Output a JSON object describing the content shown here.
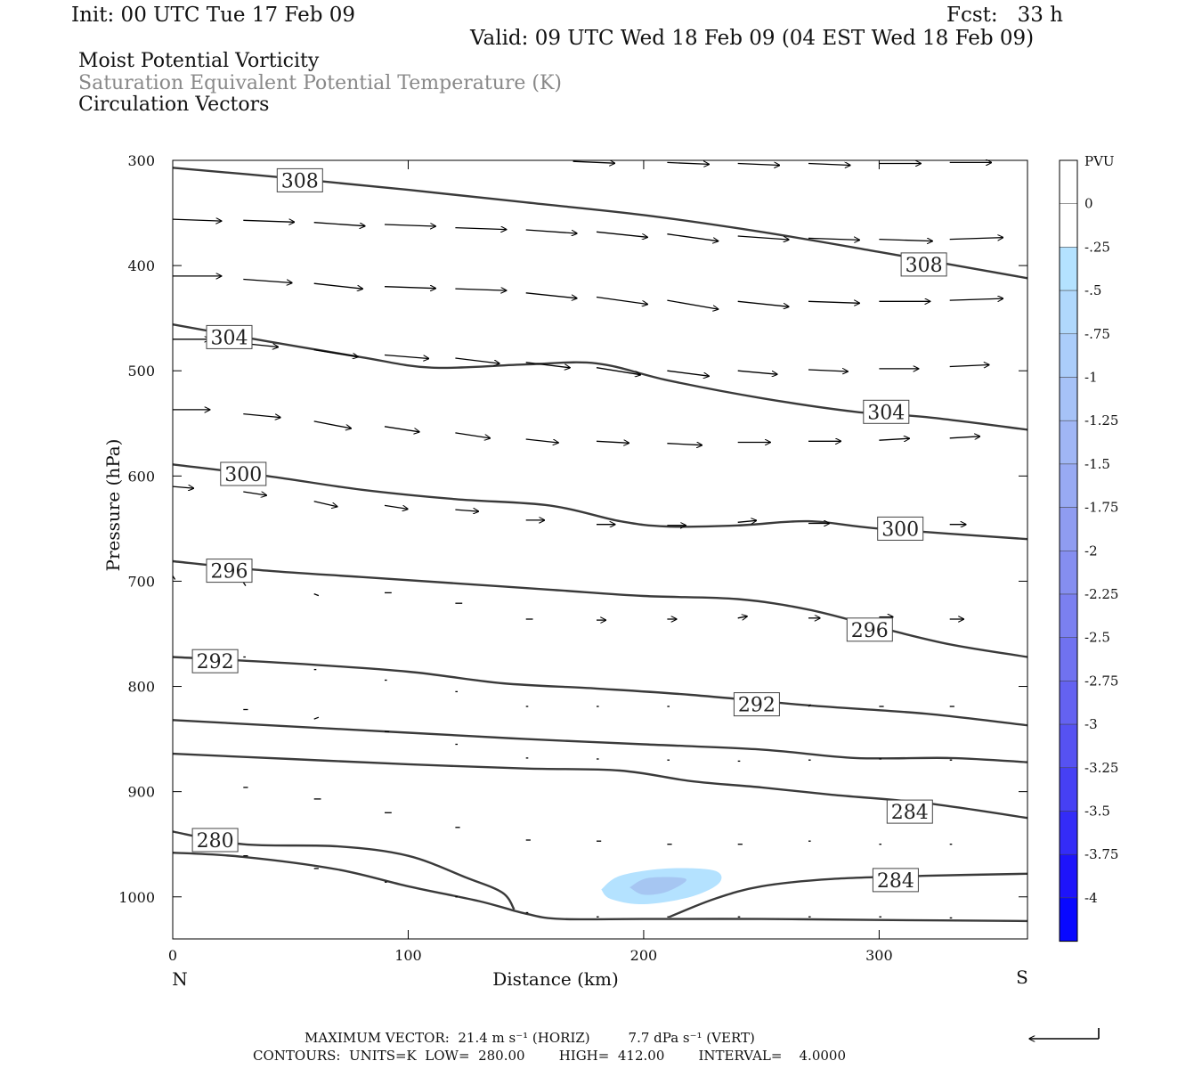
{
  "header": {
    "init": "Init: 00 UTC Tue 17 Feb 09",
    "fcst": "Fcst:   33 h",
    "valid": "Valid: 09 UTC Wed 18 Feb 09 (04 EST Wed 18 Feb 09)"
  },
  "fields": {
    "line1": "Moist Potential Vorticity",
    "line2": "Saturation Equivalent Potential Temperature (K)",
    "line3": "Circulation Vectors"
  },
  "footer": {
    "max_vector": "MAXIMUM VECTOR:  21.4 m s⁻¹ (HORIZ)         7.7 dPa s⁻¹ (VERT)",
    "contours": "CONTOURS:  UNITS=K  LOW=  280.00        HIGH=  412.00        INTERVAL=    4.0000"
  },
  "chart_data": {
    "type": "contour-cross-section",
    "xlabel": "Distance (km)",
    "ylabel": "Pressure (hPa)",
    "xlim": [
      0,
      363
    ],
    "ylim": [
      1040,
      300
    ],
    "x_ticks": [
      0,
      100,
      200,
      300
    ],
    "y_ticks": [
      300,
      400,
      500,
      600,
      700,
      800,
      900,
      1000
    ],
    "x_end_labels": {
      "left": "N",
      "right": "S"
    },
    "colorbar": {
      "unit": "PVU",
      "labels": [
        "0",
        "-.25",
        "-.5",
        "-.75",
        "-1",
        "-1.25",
        "-1.5",
        "-1.75",
        "-2",
        "-2.25",
        "-2.5",
        "-2.75",
        "-3",
        "-3.25",
        "-3.5",
        "-3.75",
        "-4"
      ],
      "colors": [
        "#ffffff",
        "#ffffff",
        "#b4e2ff",
        "#b0d8fc",
        "#abcdfa",
        "#a6c2f7",
        "#a0b6f5",
        "#98aaf3",
        "#8f9cf1",
        "#858ef0",
        "#7b80f0",
        "#7072f0",
        "#6462f1",
        "#5652f2",
        "#4640f4",
        "#342cf7",
        "#1e14fa",
        "#0808ff"
      ]
    },
    "theta_e_contours": [
      {
        "label": "308",
        "points": [
          [
            0,
            307
          ],
          [
            50,
            317
          ],
          [
            100,
            328
          ],
          [
            150,
            340
          ],
          [
            200,
            352
          ],
          [
            250,
            368
          ],
          [
            300,
            387
          ],
          [
            363,
            412
          ]
        ],
        "labels_at": [
          [
            54,
            319
          ],
          [
            319,
            399
          ]
        ]
      },
      {
        "label": "304",
        "points": [
          [
            0,
            456
          ],
          [
            40,
            472
          ],
          [
            80,
            487
          ],
          [
            110,
            497
          ],
          [
            150,
            494
          ],
          [
            180,
            493
          ],
          [
            210,
            509
          ],
          [
            250,
            526
          ],
          [
            290,
            539
          ],
          [
            320,
            544
          ],
          [
            363,
            556
          ]
        ],
        "labels_at": [
          [
            24,
            468
          ],
          [
            303,
            539
          ]
        ]
      },
      {
        "label": "300",
        "points": [
          [
            0,
            589
          ],
          [
            40,
            600
          ],
          [
            80,
            613
          ],
          [
            120,
            622
          ],
          [
            160,
            628
          ],
          [
            190,
            643
          ],
          [
            210,
            648
          ],
          [
            240,
            647
          ],
          [
            270,
            643
          ],
          [
            300,
            650
          ],
          [
            363,
            660
          ]
        ],
        "labels_at": [
          [
            30,
            598
          ],
          [
            309,
            650
          ]
        ]
      },
      {
        "label": "296",
        "points": [
          [
            0,
            681
          ],
          [
            40,
            690
          ],
          [
            80,
            696
          ],
          [
            120,
            702
          ],
          [
            160,
            708
          ],
          [
            200,
            714
          ],
          [
            240,
            717
          ],
          [
            270,
            727
          ],
          [
            300,
            744
          ],
          [
            330,
            760
          ],
          [
            363,
            772
          ]
        ],
        "labels_at": [
          [
            24,
            690
          ],
          [
            296,
            746
          ]
        ]
      },
      {
        "label": "292",
        "points": [
          [
            0,
            772
          ],
          [
            50,
            778
          ],
          [
            100,
            786
          ],
          [
            140,
            797
          ],
          [
            180,
            802
          ],
          [
            220,
            808
          ],
          [
            270,
            818
          ],
          [
            320,
            826
          ],
          [
            363,
            837
          ]
        ],
        "labels_at": [
          [
            18,
            776
          ],
          [
            248,
            817
          ]
        ]
      },
      {
        "label": "",
        "points": [
          [
            0,
            832
          ],
          [
            50,
            838
          ],
          [
            100,
            844
          ],
          [
            150,
            850
          ],
          [
            200,
            855
          ],
          [
            250,
            860
          ],
          [
            290,
            868
          ],
          [
            330,
            868
          ],
          [
            363,
            872
          ]
        ],
        "labels_at": []
      },
      {
        "label": "284",
        "points": [
          [
            0,
            864
          ],
          [
            50,
            869
          ],
          [
            100,
            874
          ],
          [
            150,
            878
          ],
          [
            190,
            880
          ],
          [
            220,
            890
          ],
          [
            250,
            896
          ],
          [
            280,
            903
          ],
          [
            320,
            911
          ],
          [
            363,
            925
          ]
        ],
        "labels_at": [
          [
            313,
            919
          ]
        ]
      },
      {
        "label": "280",
        "points": [
          [
            0,
            938
          ],
          [
            30,
            950
          ],
          [
            70,
            952
          ],
          [
            100,
            961
          ],
          [
            125,
            982
          ],
          [
            140,
            996
          ],
          [
            145,
            1012
          ]
        ],
        "labels_at": [
          [
            18,
            946
          ]
        ]
      },
      {
        "label": "284",
        "points": [
          [
            211,
            1019
          ],
          [
            230,
            1002
          ],
          [
            250,
            990
          ],
          [
            280,
            983
          ],
          [
            320,
            980
          ],
          [
            363,
            978
          ]
        ],
        "labels_at": [
          [
            307,
            984
          ]
        ]
      },
      {
        "label": "",
        "points": [
          [
            0,
            958
          ],
          [
            30,
            962
          ],
          [
            70,
            974
          ],
          [
            100,
            990
          ],
          [
            130,
            1004
          ],
          [
            150,
            1016
          ],
          [
            165,
            1021
          ],
          [
            200,
            1021
          ],
          [
            250,
            1021
          ],
          [
            300,
            1022
          ],
          [
            363,
            1023
          ]
        ],
        "labels_at": []
      }
    ],
    "mpv_shading": [
      {
        "value": -0.25,
        "points": [
          [
            182,
            993
          ],
          [
            190,
            980
          ],
          [
            210,
            973
          ],
          [
            230,
            975
          ],
          [
            232,
            987
          ],
          [
            220,
            1000
          ],
          [
            200,
            1007
          ],
          [
            186,
            1002
          ]
        ]
      },
      {
        "value": -0.5,
        "points": [
          [
            194,
            991
          ],
          [
            202,
            982
          ],
          [
            218,
            983
          ],
          [
            210,
            995
          ],
          [
            200,
            998
          ]
        ]
      }
    ],
    "circulation_vectors": [
      [
        0,
        356,
        21,
        -1
      ],
      [
        30,
        357,
        22,
        -1
      ],
      [
        60,
        359,
        22,
        -2
      ],
      [
        90,
        361,
        22,
        -1
      ],
      [
        120,
        364,
        22,
        -1
      ],
      [
        150,
        366,
        22,
        -2
      ],
      [
        180,
        368,
        22,
        -3
      ],
      [
        210,
        370,
        22,
        -4
      ],
      [
        240,
        372,
        22,
        -2
      ],
      [
        270,
        374,
        22,
        -1
      ],
      [
        300,
        375,
        23,
        -1
      ],
      [
        330,
        375,
        23,
        1
      ],
      [
        0,
        410,
        21,
        0
      ],
      [
        30,
        413,
        21,
        -2
      ],
      [
        60,
        417,
        21,
        -3
      ],
      [
        90,
        420,
        22,
        -1
      ],
      [
        120,
        422,
        22,
        -1
      ],
      [
        150,
        426,
        22,
        -3
      ],
      [
        180,
        430,
        22,
        -4
      ],
      [
        210,
        433,
        22,
        -5
      ],
      [
        240,
        434,
        22,
        -3
      ],
      [
        270,
        434,
        22,
        -1
      ],
      [
        300,
        434,
        22,
        0
      ],
      [
        330,
        433,
        23,
        1
      ],
      [
        0,
        470,
        16,
        0
      ],
      [
        30,
        474,
        15,
        -2
      ],
      [
        60,
        480,
        19,
        -4
      ],
      [
        90,
        485,
        19,
        -2
      ],
      [
        120,
        488,
        19,
        -3
      ],
      [
        150,
        492,
        19,
        -3
      ],
      [
        180,
        497,
        19,
        -4
      ],
      [
        210,
        500,
        18,
        -3
      ],
      [
        240,
        500,
        17,
        -2
      ],
      [
        270,
        499,
        17,
        -1
      ],
      [
        300,
        498,
        17,
        0
      ],
      [
        330,
        496,
        17,
        1
      ],
      [
        0,
        537,
        16,
        0
      ],
      [
        30,
        541,
        16,
        -2
      ],
      [
        60,
        548,
        16,
        -4
      ],
      [
        90,
        553,
        15,
        -3
      ],
      [
        120,
        559,
        15,
        -3
      ],
      [
        150,
        565,
        14,
        -2
      ],
      [
        180,
        567,
        14,
        -1
      ],
      [
        210,
        569,
        15,
        -1
      ],
      [
        240,
        568,
        14,
        0
      ],
      [
        270,
        567,
        14,
        0
      ],
      [
        300,
        566,
        13,
        1
      ],
      [
        330,
        564,
        13,
        1
      ],
      [
        0,
        610,
        9,
        -1
      ],
      [
        30,
        615,
        10,
        -2
      ],
      [
        60,
        624,
        10,
        -3
      ],
      [
        90,
        628,
        10,
        -2
      ],
      [
        120,
        632,
        10,
        -1
      ],
      [
        150,
        642,
        8,
        0
      ],
      [
        180,
        646,
        8,
        0
      ],
      [
        210,
        647,
        8,
        0
      ],
      [
        240,
        644,
        8,
        1
      ],
      [
        270,
        645,
        9,
        0
      ],
      [
        300,
        647,
        8,
        0
      ],
      [
        330,
        646,
        7,
        0
      ],
      [
        0,
        695,
        1,
        -2
      ],
      [
        30,
        701,
        1,
        -2
      ],
      [
        60,
        712,
        2,
        -1
      ],
      [
        90,
        711,
        3,
        0
      ],
      [
        120,
        721,
        3,
        0
      ],
      [
        150,
        736,
        3,
        0
      ],
      [
        180,
        737,
        4,
        0
      ],
      [
        210,
        736,
        4,
        0
      ],
      [
        240,
        735,
        4,
        1
      ],
      [
        270,
        735,
        5,
        0
      ],
      [
        300,
        734,
        6,
        0
      ],
      [
        330,
        736,
        6,
        0
      ],
      [
        30,
        772,
        1,
        0
      ],
      [
        60,
        784,
        1,
        0
      ],
      [
        90,
        794,
        1,
        0
      ],
      [
        120,
        805,
        1,
        0
      ],
      [
        150,
        819,
        1,
        0
      ],
      [
        180,
        819,
        1,
        0
      ],
      [
        210,
        819,
        1,
        0
      ],
      [
        240,
        819,
        1,
        1
      ],
      [
        270,
        819,
        1,
        1
      ],
      [
        300,
        819,
        2,
        0
      ],
      [
        330,
        819,
        2,
        0
      ],
      [
        30,
        822,
        2,
        0
      ],
      [
        60,
        831,
        2,
        1
      ],
      [
        90,
        843,
        2,
        0
      ],
      [
        120,
        855,
        1,
        0
      ],
      [
        150,
        868,
        1,
        0
      ],
      [
        180,
        869,
        1,
        0
      ],
      [
        210,
        870,
        1,
        0
      ],
      [
        240,
        871,
        1,
        0
      ],
      [
        270,
        870,
        1,
        0
      ],
      [
        300,
        869,
        1,
        0
      ],
      [
        330,
        870,
        1,
        0
      ],
      [
        30,
        896,
        2,
        0
      ],
      [
        60,
        907,
        3,
        0
      ],
      [
        90,
        920,
        3,
        0
      ],
      [
        120,
        934,
        2,
        0
      ],
      [
        150,
        946,
        2,
        0
      ],
      [
        180,
        947,
        2,
        0
      ],
      [
        210,
        950,
        2,
        0
      ],
      [
        240,
        950,
        2,
        0
      ],
      [
        270,
        947,
        1,
        0
      ],
      [
        300,
        950,
        1,
        0
      ],
      [
        330,
        950,
        1,
        0
      ],
      [
        30,
        961,
        2,
        0
      ],
      [
        60,
        973,
        2,
        0
      ],
      [
        90,
        986,
        1,
        0
      ],
      [
        120,
        1000,
        1,
        0
      ],
      [
        150,
        1015,
        1,
        0
      ],
      [
        180,
        1019,
        1,
        0
      ],
      [
        210,
        1019,
        1,
        0
      ],
      [
        240,
        1019,
        1,
        0
      ],
      [
        270,
        1019,
        1,
        0
      ],
      [
        300,
        1019,
        1,
        0
      ],
      [
        330,
        1020,
        1,
        0
      ],
      [
        170,
        301,
        18,
        -1
      ],
      [
        210,
        302,
        18,
        -1
      ],
      [
        240,
        303,
        18,
        -1
      ],
      [
        270,
        303,
        18,
        -1
      ],
      [
        300,
        303,
        18,
        0
      ],
      [
        330,
        302,
        18,
        0
      ]
    ],
    "reference_vector": {
      "horiz": "21.4 m s⁻¹",
      "vert": "7.7 dPa s⁻¹"
    }
  }
}
